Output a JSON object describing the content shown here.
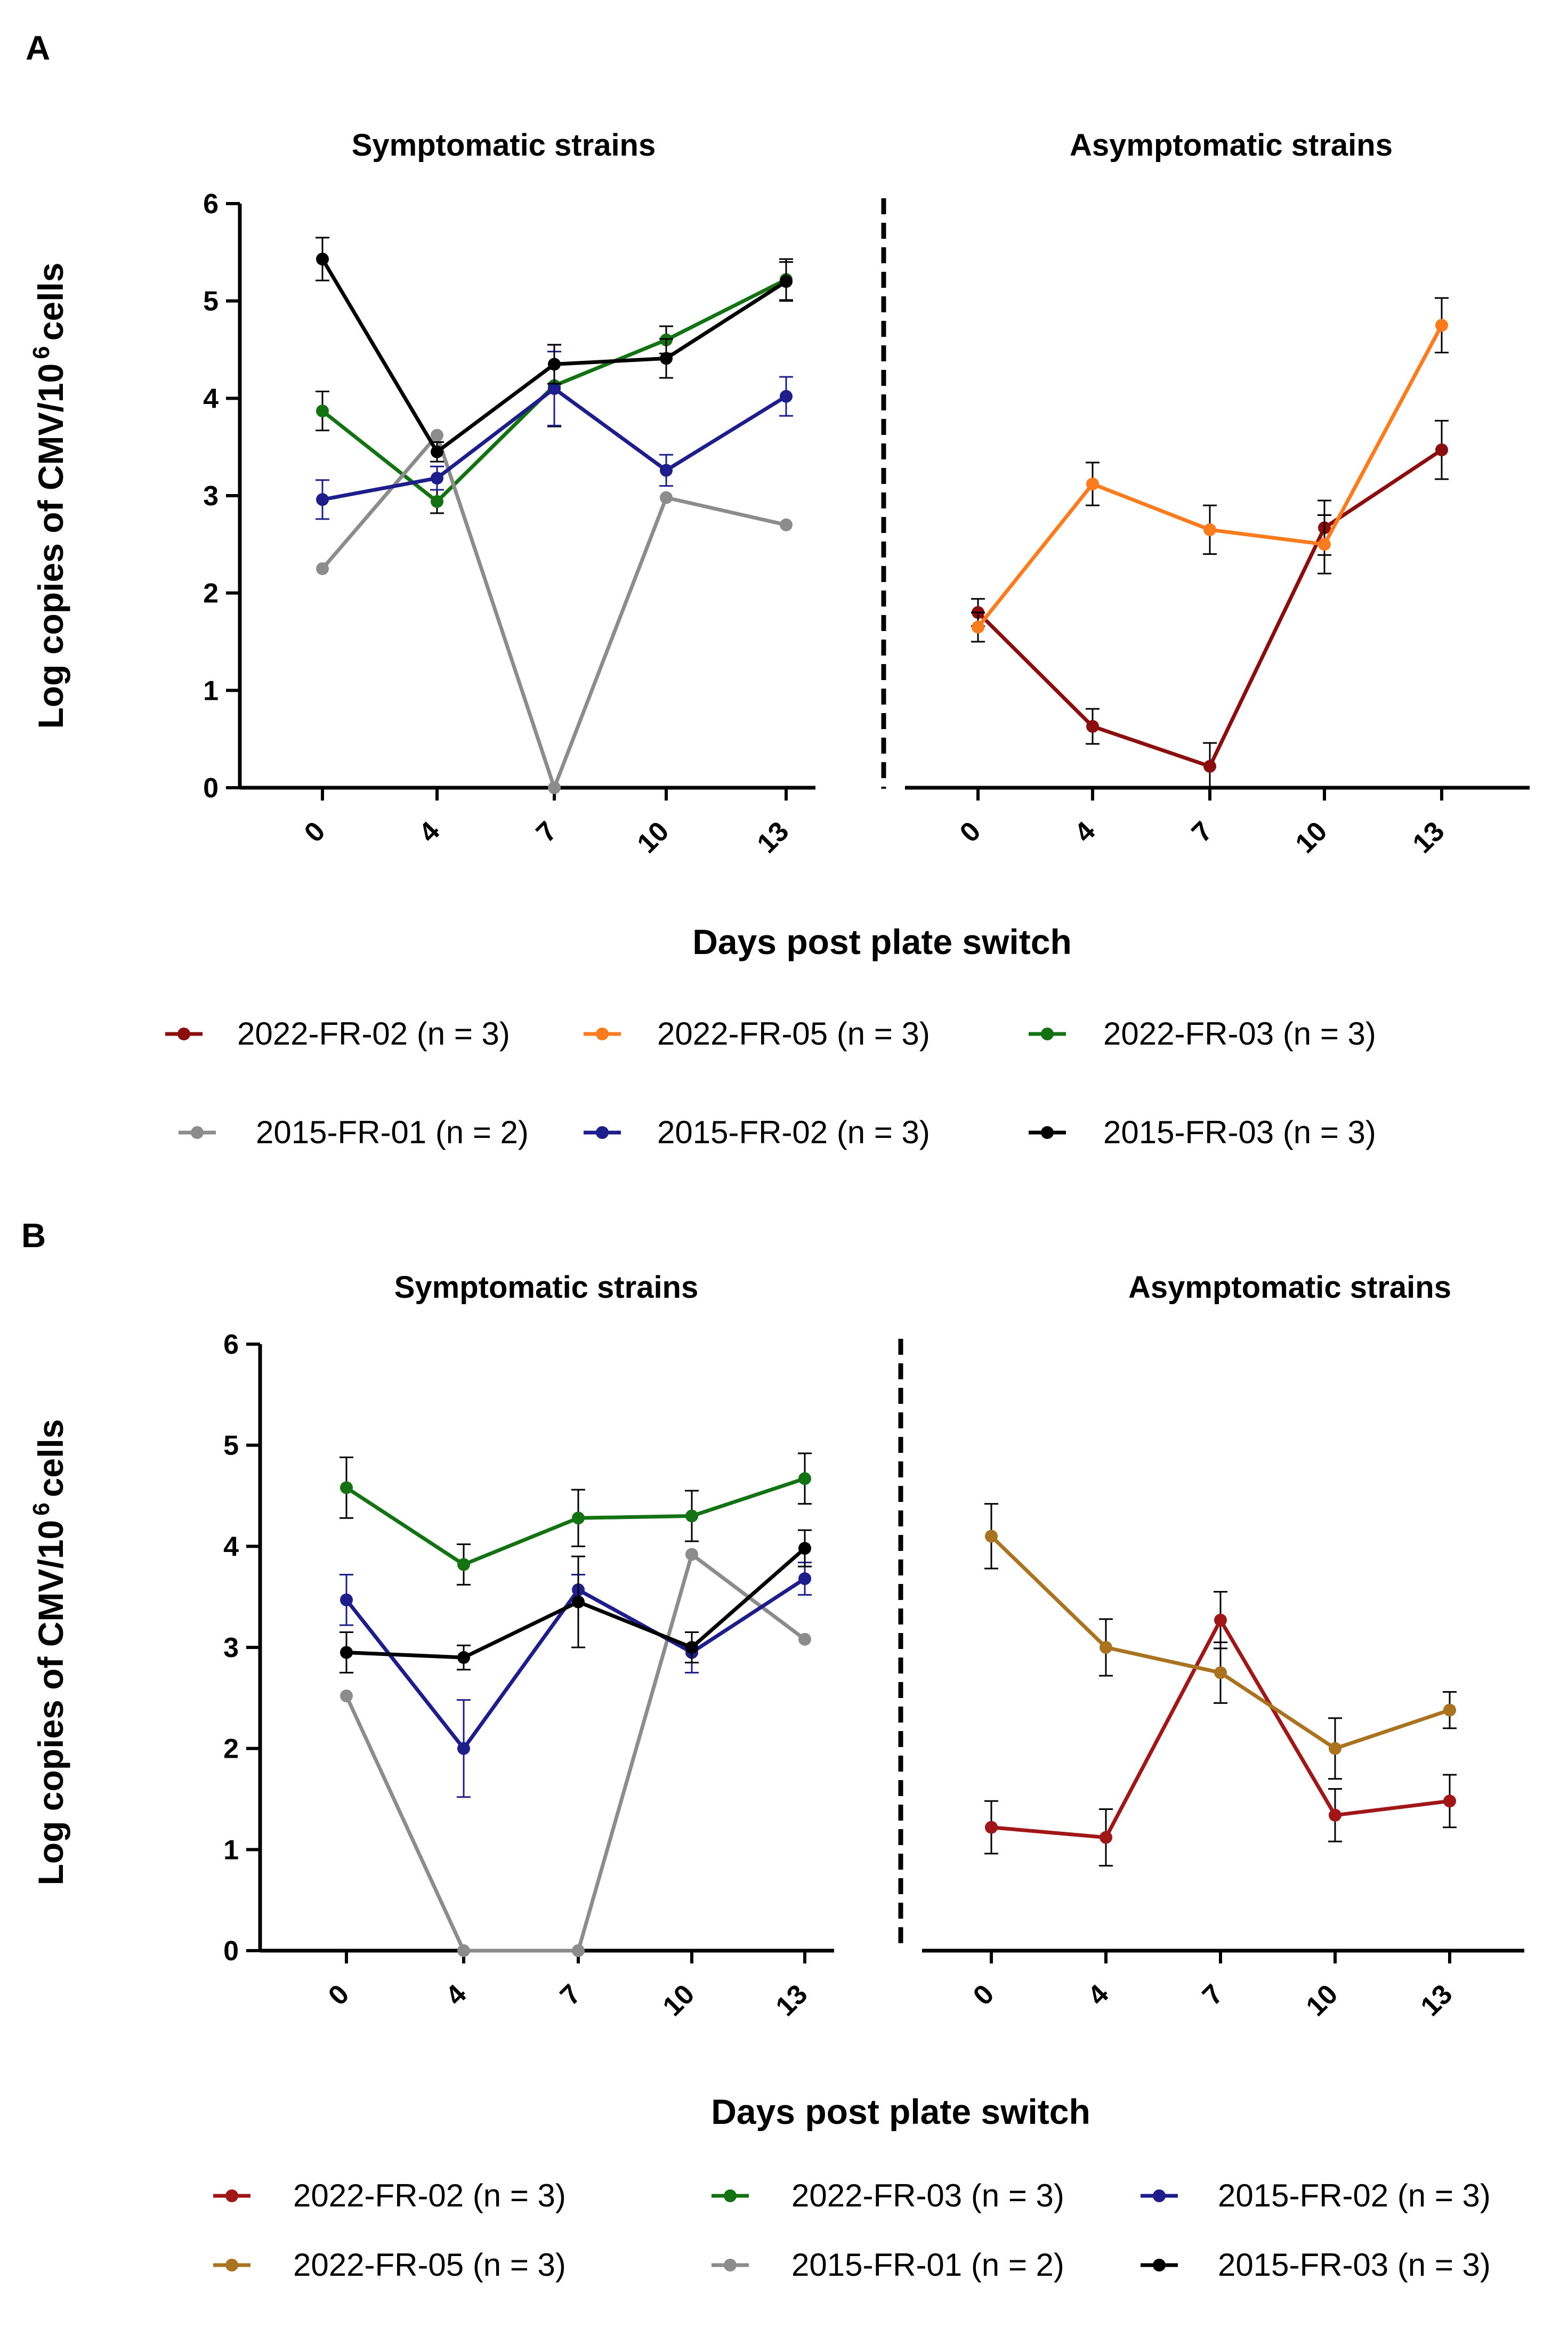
{
  "chart_data": [
    {
      "panel": "A",
      "type": "line",
      "ylabel_prefix": "Log copies of CMV/10",
      "ylabel_superscript": "6",
      "ylabel_suffix": "cells",
      "xlabel": "Days post plate switch",
      "ylim": [
        0,
        6
      ],
      "yticks": [
        "0",
        "1",
        "2",
        "3",
        "4",
        "5",
        "6"
      ],
      "groups": [
        {
          "title": "Symptomatic strains",
          "categories": [
            "0",
            "4",
            "7",
            "10",
            "13"
          ],
          "series": [
            {
              "name": "2022-FR-03",
              "color": "#137313",
              "values": [
                3.87,
                2.94,
                4.13,
                4.6,
                5.22
              ],
              "err": [
                0.2,
                0.12,
                0.42,
                0.14,
                0.21
              ]
            },
            {
              "name": "2015-FR-01",
              "color": "#8c8c8c",
              "values": [
                2.25,
                3.62,
                0,
                2.98,
                2.7
              ],
              "err": [
                0,
                0,
                0,
                0,
                0
              ]
            },
            {
              "name": "2015-FR-02",
              "color": "#1d1d8c",
              "values": [
                2.96,
                3.18,
                4.1,
                3.26,
                4.02
              ],
              "err": [
                0.2,
                0.12,
                0.38,
                0.16,
                0.2
              ]
            },
            {
              "name": "2015-FR-03",
              "color": "#000000",
              "values": [
                5.43,
                3.45,
                4.35,
                4.41,
                5.2
              ],
              "err": [
                0.22,
                0.1,
                0.2,
                0.2,
                0.2
              ]
            }
          ]
        },
        {
          "title": "Asymptomatic strains",
          "categories": [
            "0",
            "4",
            "7",
            "10",
            "13"
          ],
          "series": [
            {
              "name": "2022-FR-02",
              "color": "#8b0d0d",
              "values": [
                1.8,
                0.63,
                0.22,
                2.67,
                3.47
              ],
              "err": [
                0.14,
                0.18,
                0.24,
                0.28,
                0.3
              ]
            },
            {
              "name": "2022-FR-05",
              "color": "#fb7b1d",
              "values": [
                1.65,
                3.12,
                2.65,
                2.5,
                4.75
              ],
              "err": [
                0.15,
                0.22,
                0.25,
                0.3,
                0.28
              ]
            }
          ]
        }
      ],
      "legend": {
        "row1": [
          {
            "label": "2022-FR-02 (n = 3)",
            "color": "#8b0d0d"
          },
          {
            "label": "2022-FR-05 (n = 3)",
            "color": "#fb7b1d"
          },
          {
            "label": "2022-FR-03 (n = 3)",
            "color": "#137313"
          }
        ],
        "row2": [
          {
            "label": "2015-FR-01 (n = 2)",
            "color": "#8c8c8c"
          },
          {
            "label": "2015-FR-02 (n = 3)",
            "color": "#1d1d8c"
          },
          {
            "label": "2015-FR-03 (n = 3)",
            "color": "#000000"
          }
        ]
      }
    },
    {
      "panel": "B",
      "type": "line",
      "ylabel_prefix": "Log copies of CMV/10",
      "ylabel_superscript": "6",
      "ylabel_suffix": "cells",
      "xlabel": "Days post plate switch",
      "ylim": [
        0,
        6
      ],
      "yticks": [
        "0",
        "1",
        "2",
        "3",
        "4",
        "5",
        "6"
      ],
      "groups": [
        {
          "title": "Symptomatic strains",
          "categories": [
            "0",
            "4",
            "7",
            "10",
            "13"
          ],
          "series": [
            {
              "name": "2022-FR-03",
              "color": "#137313",
              "values": [
                4.58,
                3.82,
                4.28,
                4.3,
                4.67
              ],
              "err": [
                0.3,
                0.2,
                0.28,
                0.25,
                0.25
              ]
            },
            {
              "name": "2015-FR-01",
              "color": "#8c8c8c",
              "values": [
                2.52,
                0,
                0,
                3.92,
                3.08
              ],
              "err": [
                0,
                0,
                0,
                0,
                0
              ]
            },
            {
              "name": "2015-FR-02",
              "color": "#1d1d8c",
              "values": [
                3.47,
                2.0,
                3.57,
                2.95,
                3.68
              ],
              "err": [
                0.25,
                0.48,
                0.15,
                0.2,
                0.16
              ]
            },
            {
              "name": "2015-FR-03",
              "color": "#000000",
              "values": [
                2.95,
                2.9,
                3.45,
                3.0,
                3.98
              ],
              "err": [
                0.2,
                0.12,
                0.45,
                0.15,
                0.18
              ]
            }
          ]
        },
        {
          "title": "Asymptomatic strains",
          "categories": [
            "0",
            "4",
            "7",
            "10",
            "13"
          ],
          "series": [
            {
              "name": "2022-FR-02",
              "color": "#a11616",
              "values": [
                1.22,
                1.12,
                3.27,
                1.34,
                1.48
              ],
              "err": [
                0.26,
                0.28,
                0.28,
                0.26,
                0.26
              ]
            },
            {
              "name": "2022-FR-05",
              "color": "#a9731f",
              "values": [
                4.1,
                3.0,
                2.75,
                2.0,
                2.38
              ],
              "err": [
                0.32,
                0.28,
                0.3,
                0.3,
                0.18
              ]
            }
          ]
        }
      ],
      "legend": {
        "row1": [
          {
            "label": "2022-FR-02 (n = 3)",
            "color": "#a11616"
          },
          {
            "label": "2022-FR-03 (n = 3)",
            "color": "#137313"
          },
          {
            "label": "2015-FR-02 (n = 3)",
            "color": "#1d1d8c"
          }
        ],
        "row2": [
          {
            "label": "2022-FR-05 (n = 3)",
            "color": "#a9731f"
          },
          {
            "label": "2015-FR-01 (n = 2)",
            "color": "#8c8c8c"
          },
          {
            "label": "2015-FR-03 (n = 3)",
            "color": "#000000"
          }
        ]
      }
    }
  ]
}
